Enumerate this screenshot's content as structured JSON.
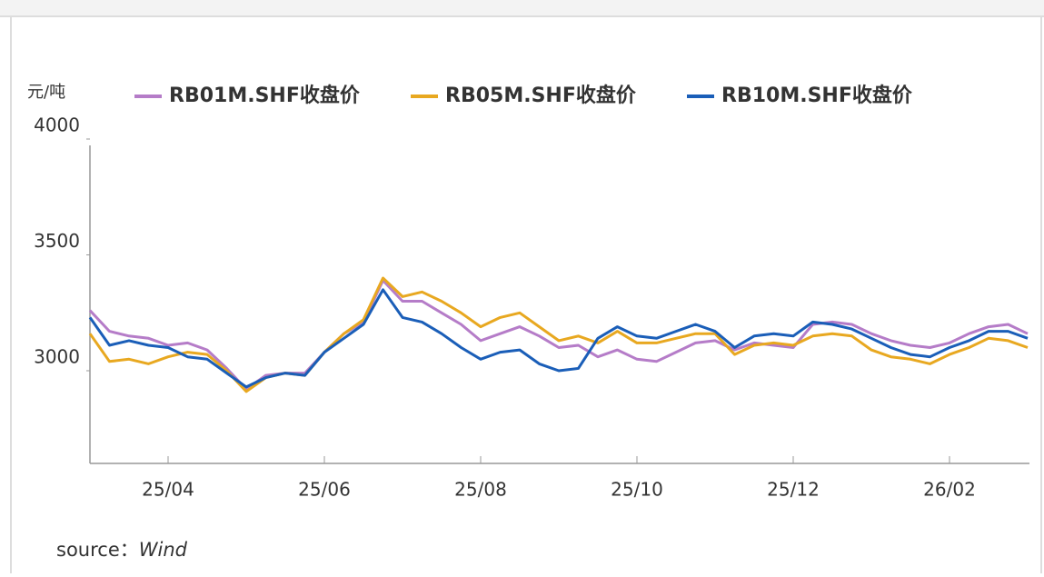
{
  "chart_data": {
    "type": "line",
    "y_unit": "元/吨",
    "source_label": "source：",
    "source": "Wind",
    "categories": [
      null,
      null,
      null,
      null,
      "25/04",
      null,
      null,
      null,
      null,
      null,
      null,
      null,
      "25/06",
      null,
      null,
      null,
      null,
      null,
      null,
      null,
      "25/08",
      null,
      null,
      null,
      null,
      null,
      null,
      null,
      "25/10",
      null,
      null,
      null,
      null,
      null,
      null,
      null,
      "25/12",
      null,
      null,
      null,
      null,
      null,
      null,
      null,
      "26/02",
      null,
      null,
      null,
      null
    ],
    "series": [
      {
        "name": "RB01M.SHF收盘价",
        "color": "#b57cc8",
        "values": [
          3260,
          3170,
          3150,
          3140,
          3110,
          3120,
          3090,
          3010,
          2920,
          2980,
          2990,
          2990,
          3080,
          3160,
          3210,
          3390,
          3300,
          3300,
          3250,
          3200,
          3130,
          3160,
          3190,
          3150,
          3100,
          3110,
          3060,
          3090,
          3050,
          3040,
          3080,
          3120,
          3130,
          3090,
          3120,
          3110,
          3100,
          3200,
          3210,
          3200,
          3160,
          3130,
          3110,
          3100,
          3120,
          3160,
          3190,
          3200,
          3160
        ]
      },
      {
        "name": "RB05M.SHF收盘价",
        "color": "#e8a820",
        "values": [
          3160,
          3040,
          3050,
          3030,
          3060,
          3080,
          3070,
          3000,
          2910,
          2970,
          2990,
          2980,
          3080,
          3160,
          3220,
          3400,
          3320,
          3340,
          3300,
          3250,
          3190,
          3230,
          3250,
          3190,
          3130,
          3150,
          3120,
          3170,
          3120,
          3120,
          3140,
          3160,
          3160,
          3070,
          3110,
          3120,
          3110,
          3150,
          3160,
          3150,
          3090,
          3060,
          3050,
          3030,
          3070,
          3100,
          3140,
          3130,
          3100
        ]
      },
      {
        "name": "RB10M.SHF收盘价",
        "color": "#1a5eb8",
        "values": [
          3230,
          3110,
          3130,
          3110,
          3100,
          3060,
          3050,
          2990,
          2930,
          2970,
          2990,
          2980,
          3080,
          3140,
          3200,
          3350,
          3230,
          3210,
          3160,
          3100,
          3050,
          3080,
          3090,
          3030,
          3000,
          3010,
          3140,
          3190,
          3150,
          3140,
          3170,
          3200,
          3170,
          3100,
          3150,
          3160,
          3150,
          3210,
          3200,
          3180,
          3140,
          3100,
          3070,
          3060,
          3100,
          3130,
          3170,
          3170,
          3140
        ]
      }
    ],
    "ylim": [
      2600,
      4000
    ],
    "yticks": [
      3000,
      3500,
      4000
    ]
  }
}
